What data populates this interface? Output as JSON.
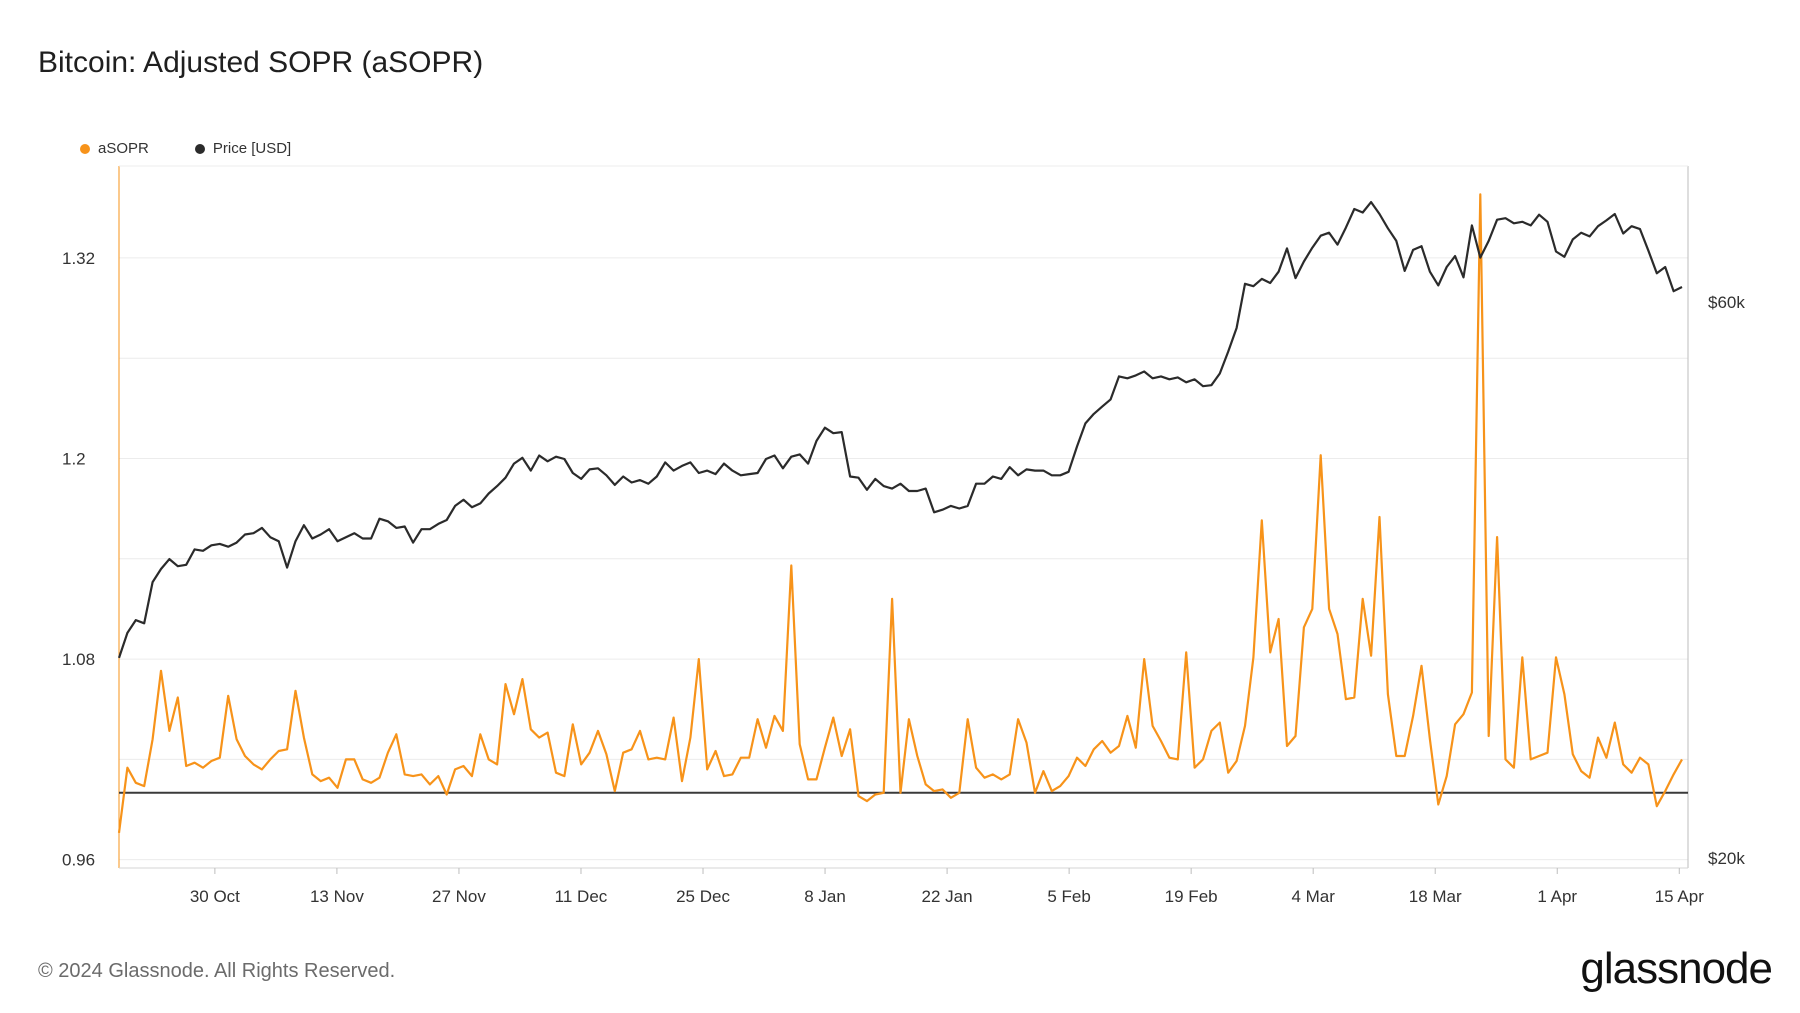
{
  "title": "Bitcoin: Adjusted SOPR (aSOPR)",
  "footer": "© 2024 Glassnode. All Rights Reserved.",
  "brand": "glassnode",
  "chart_data": {
    "type": "line",
    "title": "Bitcoin: Adjusted SOPR (aSOPR)",
    "legend_position": "top-left",
    "grid": true,
    "x_tick_labels": [
      "30 Oct",
      "13 Nov",
      "27 Nov",
      "11 Dec",
      "25 Dec",
      "8 Jan",
      "22 Jan",
      "5 Feb",
      "19 Feb",
      "4 Mar",
      "18 Mar",
      "1 Apr",
      "15 Apr"
    ],
    "x_range": [
      "2023-10-19",
      "2024-04-16"
    ],
    "y_left": {
      "ticks": [
        0.96,
        1.08,
        1.2,
        1.32
      ],
      "labels": [
        "0.96",
        "1.08",
        "1.2",
        "1.32"
      ],
      "range": [
        0.955,
        1.375
      ],
      "reference_line": 1.0
    },
    "y_right": {
      "scale": "log",
      "ticks": [
        20000,
        60000
      ],
      "labels": [
        "$20k",
        "$60k"
      ]
    },
    "colors": {
      "asopr": "#f7931a",
      "price": "#2b2b2b",
      "grid": "#ececec",
      "reference": "#3a3a3a"
    },
    "series": [
      {
        "name": "aSOPR",
        "axis": "left",
        "values": [
          0.976,
          1.015,
          1.006,
          1.004,
          1.032,
          1.073,
          1.037,
          1.057,
          1.016,
          1.018,
          1.015,
          1.019,
          1.021,
          1.058,
          1.032,
          1.022,
          1.017,
          1.014,
          1.02,
          1.025,
          1.026,
          1.061,
          1.033,
          1.011,
          1.007,
          1.009,
          1.003,
          1.02,
          1.02,
          1.008,
          1.006,
          1.009,
          1.024,
          1.035,
          1.011,
          1.01,
          1.011,
          1.005,
          1.01,
          0.999,
          1.014,
          1.016,
          1.01,
          1.035,
          1.02,
          1.017,
          1.065,
          1.047,
          1.068,
          1.038,
          1.033,
          1.036,
          1.012,
          1.01,
          1.041,
          1.017,
          1.024,
          1.037,
          1.023,
          1.001,
          1.024,
          1.026,
          1.037,
          1.02,
          1.021,
          1.02,
          1.045,
          1.007,
          1.033,
          1.08,
          1.014,
          1.025,
          1.01,
          1.011,
          1.021,
          1.021,
          1.044,
          1.027,
          1.046,
          1.037,
          1.136,
          1.029,
          1.008,
          1.008,
          1.027,
          1.045,
          1.022,
          1.038,
          0.998,
          0.995,
          0.999,
          1.0,
          1.116,
          1.0,
          1.044,
          1.022,
          1.005,
          1.001,
          1.002,
          0.997,
          1.0,
          1.044,
          1.015,
          1.009,
          1.011,
          1.008,
          1.011,
          1.044,
          1.03,
          1.0,
          1.013,
          1.001,
          1.004,
          1.01,
          1.021,
          1.016,
          1.026,
          1.031,
          1.024,
          1.028,
          1.046,
          1.027,
          1.08,
          1.04,
          1.031,
          1.021,
          1.02,
          1.084,
          1.015,
          1.02,
          1.037,
          1.042,
          1.012,
          1.019,
          1.04,
          1.081,
          1.163,
          1.084,
          1.104,
          1.028,
          1.034,
          1.099,
          1.11,
          1.202,
          1.11,
          1.095,
          1.056,
          1.057,
          1.116,
          1.082,
          1.165,
          1.059,
          1.022,
          1.022,
          1.046,
          1.076,
          1.032,
          0.993,
          1.01,
          1.041,
          1.047,
          1.06,
          1.358,
          1.034,
          1.153,
          1.02,
          1.015,
          1.081,
          1.02,
          1.022,
          1.024,
          1.081,
          1.059,
          1.023,
          1.013,
          1.009,
          1.033,
          1.021,
          1.042,
          1.017,
          1.012,
          1.021,
          1.017,
          0.992,
          1.001,
          1.011,
          1.02
        ]
      },
      {
        "name": "Price [USD]",
        "axis": "right",
        "values": [
          29700,
          31200,
          32000,
          31800,
          34500,
          35400,
          36100,
          35600,
          35700,
          36800,
          36700,
          37100,
          37200,
          37000,
          37300,
          37900,
          38000,
          38400,
          37700,
          37400,
          35500,
          37400,
          38600,
          37600,
          37900,
          38300,
          37400,
          37700,
          38000,
          37600,
          37600,
          39100,
          38900,
          38400,
          38500,
          37300,
          38300,
          38300,
          38700,
          39000,
          40100,
          40600,
          40000,
          40300,
          41100,
          41700,
          42400,
          43600,
          44100,
          43000,
          44300,
          43800,
          44200,
          44000,
          42800,
          42300,
          43100,
          43200,
          42600,
          41800,
          42500,
          42000,
          42200,
          41900,
          42500,
          43700,
          43000,
          43400,
          43700,
          42800,
          43000,
          42700,
          43600,
          43000,
          42600,
          42700,
          42800,
          44000,
          44300,
          43200,
          44200,
          44400,
          43600,
          45600,
          46800,
          46300,
          46400,
          42500,
          42400,
          41400,
          42300,
          41700,
          41500,
          41900,
          41300,
          41300,
          41500,
          39600,
          39800,
          40100,
          39900,
          40100,
          41900,
          41900,
          42500,
          42300,
          43300,
          42600,
          43100,
          43000,
          43000,
          42600,
          42600,
          42900,
          45100,
          47200,
          48100,
          48800,
          49500,
          51800,
          51600,
          51900,
          52300,
          51600,
          51800,
          51500,
          51700,
          51200,
          51500,
          50800,
          50900,
          52100,
          54400,
          57000,
          62200,
          61900,
          62800,
          62300,
          63700,
          66700,
          62900,
          65000,
          66800,
          68400,
          68800,
          67200,
          69500,
          72100,
          71600,
          73100,
          71400,
          69400,
          67700,
          63800,
          66500,
          67000,
          63700,
          62000,
          64300,
          65700,
          63000,
          69800,
          65500,
          67700,
          70600,
          70800,
          70100,
          70300,
          69800,
          71300,
          70300,
          66300,
          65600,
          67900,
          68800,
          68300,
          69700,
          70500,
          71400,
          68700,
          69700,
          69300,
          66400,
          63500,
          64300,
          61300,
          61800
        ]
      }
    ]
  }
}
